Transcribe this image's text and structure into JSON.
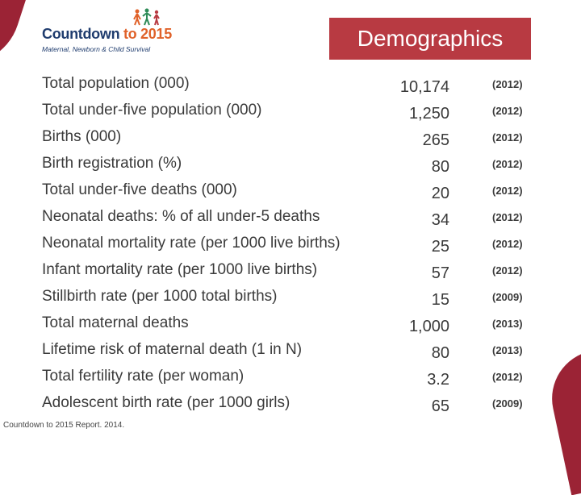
{
  "logo": {
    "title_main": "Countdown ",
    "title_accent": "to 2015",
    "subtitle": "Maternal, Newborn & Child Survival"
  },
  "title": "Demographics",
  "rows": [
    {
      "label": "Total population (000)",
      "value": "10,174",
      "year": "(2012)"
    },
    {
      "label": "Total under-five population (000)",
      "value": "1,250",
      "year": "(2012)"
    },
    {
      "label": "Births (000)",
      "value": "265",
      "year": "(2012)"
    },
    {
      "label": "Birth registration (%)",
      "value": "80",
      "year": "(2012)"
    },
    {
      "label": "Total under-five deaths (000)",
      "value": "20",
      "year": "(2012)"
    },
    {
      "label": "Neonatal deaths: % of all under-5 deaths",
      "value": "34",
      "year": "(2012)"
    },
    {
      "label": "Neonatal mortality rate (per 1000 live births)",
      "value": "25",
      "year": "(2012)"
    },
    {
      "label": "Infant mortality rate (per 1000 live births)",
      "value": "57",
      "year": "(2012)"
    },
    {
      "label": "Stillbirth rate (per 1000 total births)",
      "value": "15",
      "year": "(2009)"
    },
    {
      "label": "Total maternal deaths",
      "value": "1,000",
      "year": "(2013)"
    },
    {
      "label": "Lifetime risk of maternal death (1 in N)",
      "value": "80",
      "year": "(2013)"
    },
    {
      "label": "Total fertility rate (per woman)",
      "value": "3.2",
      "year": "(2012)"
    },
    {
      "label": "Adolescent birth rate (per 1000 girls)",
      "value": "65",
      "year": "(2009)"
    }
  ],
  "footer": "Countdown to 2015 Report. 2014.",
  "colors": {
    "title_bg": "#b83a42",
    "accent_red": "#9b2335",
    "logo_blue": "#1f3c6e",
    "logo_orange": "#e0622a"
  }
}
